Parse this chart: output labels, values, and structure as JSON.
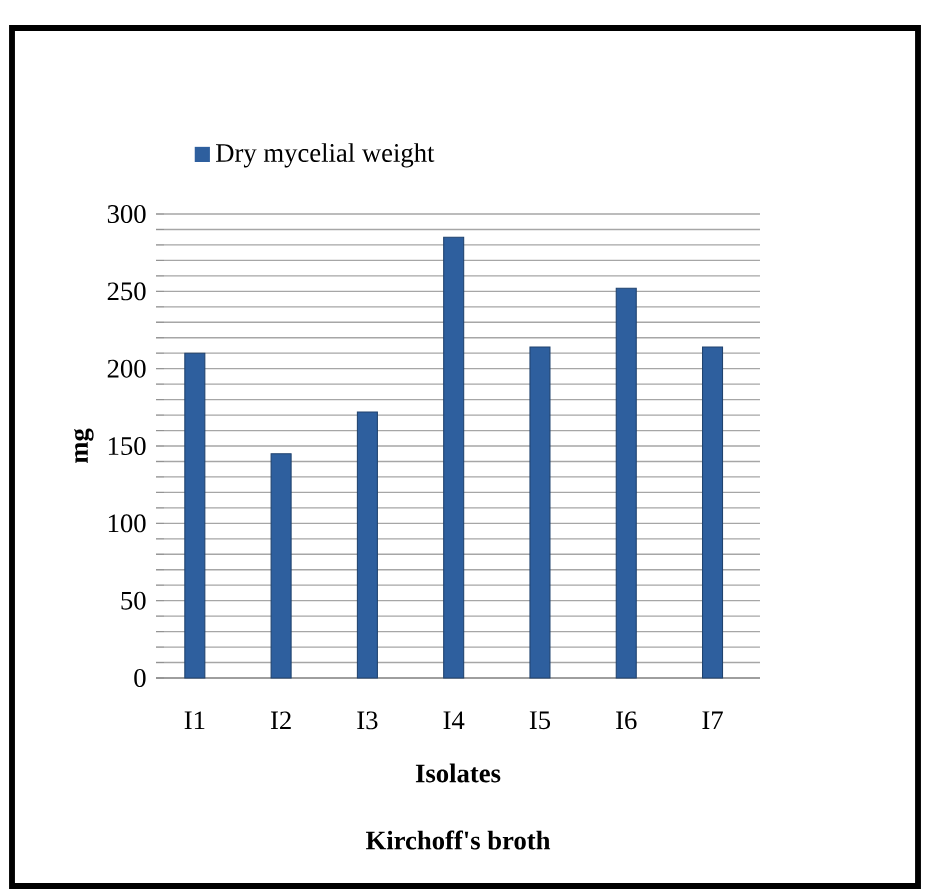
{
  "chart_data": {
    "type": "bar",
    "xlabel": "Isolates",
    "ylabel": "mg",
    "annotations": [
      "Kirchoff's broth"
    ],
    "categories": [
      "I1",
      "I2",
      "I3",
      "I4",
      "I5",
      "I6",
      "I7"
    ],
    "series": [
      {
        "name": "Dry mycelial weight",
        "color": "#2e5f9e",
        "values": [
          210,
          145,
          172,
          285,
          214,
          252,
          214
        ]
      }
    ],
    "ylim": [
      0,
      300
    ],
    "yticks": [
      0,
      {
        "value": 10,
        "label": null
      },
      {
        "value": 20,
        "label": null
      },
      {
        "value": 30,
        "label": null
      },
      {
        "value": 40,
        "label": null
      },
      50,
      {
        "value": 60,
        "label": null
      },
      {
        "value": 70,
        "label": null
      },
      {
        "value": 80,
        "label": null
      },
      {
        "value": 90,
        "label": null
      },
      100,
      {
        "value": 110,
        "label": null
      },
      {
        "value": 120,
        "label": null
      },
      {
        "value": 130,
        "label": null
      },
      {
        "value": 140,
        "label": null
      },
      150,
      {
        "value": 160,
        "label": null
      },
      {
        "value": 170,
        "label": null
      },
      {
        "value": 180,
        "label": null
      },
      {
        "value": 190,
        "label": null
      },
      200,
      {
        "value": 210,
        "label": null
      },
      {
        "value": 220,
        "label": null
      },
      {
        "value": 230,
        "label": null
      },
      {
        "value": 240,
        "label": null
      },
      250,
      {
        "value": 260,
        "label": null
      },
      {
        "value": 270,
        "label": null
      },
      {
        "value": 280,
        "label": null
      },
      {
        "value": 290,
        "label": null
      },
      300
    ],
    "grid": "y",
    "legend": "top"
  }
}
